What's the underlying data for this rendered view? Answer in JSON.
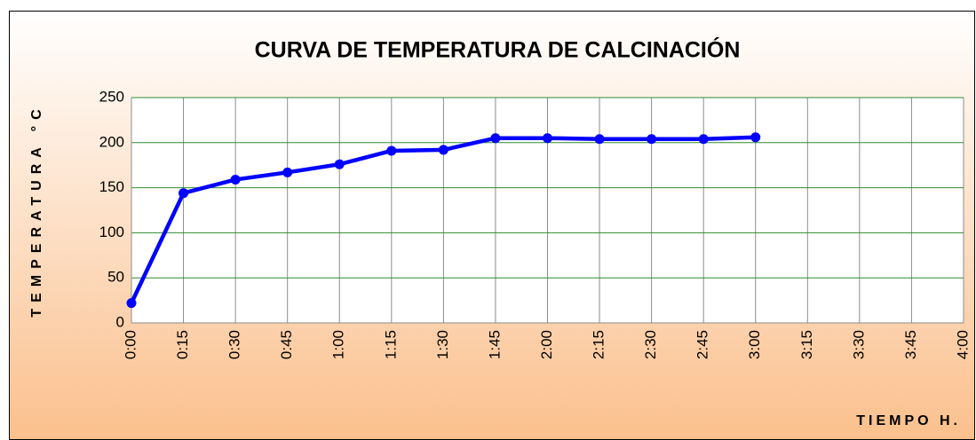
{
  "chart_data": {
    "type": "line",
    "title": "CURVA DE TEMPERATURA DE CALCINACIÓN",
    "y_label": "TEMPERATURA °C",
    "x_label": "TIEMPO H.",
    "categories": [
      "0:00",
      "0:15",
      "0:30",
      "0:45",
      "1:00",
      "1:15",
      "1:30",
      "1:45",
      "2:00",
      "2:15",
      "2:30",
      "2:45",
      "3:00",
      "3:15",
      "3:30",
      "3:45",
      "4:00"
    ],
    "series": [
      {
        "name": "TEMPERATURA",
        "color": "#0000ff",
        "values": [
          22,
          144,
          159,
          167,
          176,
          191,
          192,
          205,
          205,
          204,
          204,
          204,
          206,
          null,
          null,
          null,
          null
        ]
      }
    ],
    "ylim": [
      0,
      250
    ],
    "yticks": [
      0,
      50,
      100,
      150,
      200,
      250
    ],
    "grid": true
  }
}
